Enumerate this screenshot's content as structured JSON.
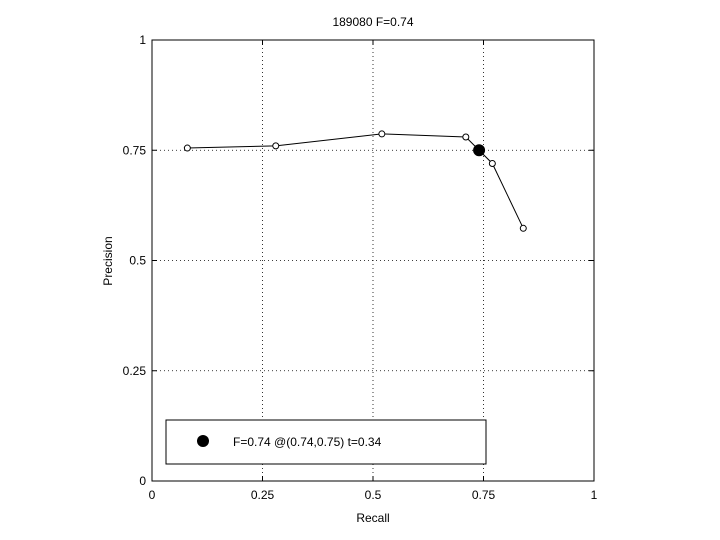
{
  "chart_data": {
    "type": "line",
    "title": "189080 F=0.74",
    "xlabel": "Recall",
    "ylabel": "Precision",
    "xlim": [
      0,
      1
    ],
    "ylim": [
      0,
      1
    ],
    "xticks": [
      0,
      0.25,
      0.5,
      0.75,
      1
    ],
    "yticks": [
      0,
      0.25,
      0.5,
      0.75,
      1
    ],
    "xtick_labels": [
      "0",
      "0.25",
      "0.5",
      "0.75",
      "1"
    ],
    "ytick_labels": [
      "0",
      "0.25",
      "0.5",
      "0.75",
      "1"
    ],
    "grid": true,
    "series": [
      {
        "marker": "open-circle",
        "color": "#000000",
        "x": [
          0.08,
          0.28,
          0.52,
          0.71,
          0.77,
          0.84
        ],
        "y": [
          0.755,
          0.76,
          0.787,
          0.78,
          0.72,
          0.573
        ]
      }
    ],
    "highlight_point": {
      "x": 0.74,
      "y": 0.75,
      "marker": "filled-circle",
      "color": "#000000"
    },
    "legend": {
      "position": "bottom-left",
      "entries": [
        {
          "label": "F=0.74 @(0.74,0.75) t=0.34",
          "marker": "filled-circle"
        }
      ]
    }
  }
}
